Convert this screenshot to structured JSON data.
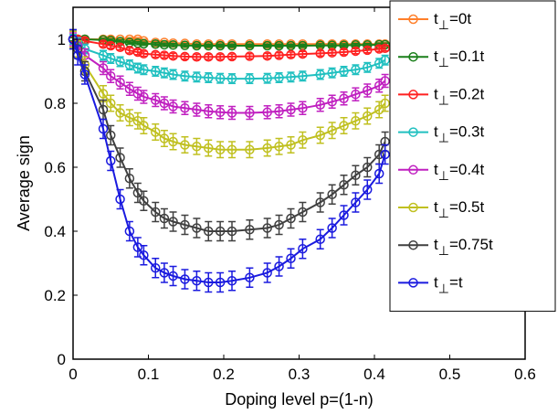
{
  "chart_data": {
    "type": "line",
    "title": "",
    "xlabel": "Doping level p=(1-n)",
    "ylabel": "Average sign",
    "xlim": [
      0,
      0.6
    ],
    "ylim": [
      0,
      1.1
    ],
    "xticks": [
      0,
      0.1,
      0.2,
      0.3,
      0.4,
      0.5,
      0.6
    ],
    "xtick_labels": [
      "0",
      "0.1",
      "0.2",
      "0.3",
      "0.4",
      "0.5",
      "0.6"
    ],
    "yticks": [
      0,
      0.2,
      0.4,
      0.6,
      0.8,
      1
    ],
    "ytick_labels": [
      "0",
      "0.2",
      "0.4",
      "0.6",
      "0.8",
      "1"
    ],
    "grid": false,
    "legend_position": "top-right",
    "x": [
      0,
      0.00625,
      0.01563,
      0.04,
      0.05,
      0.0625,
      0.075,
      0.0859,
      0.0938,
      0.1094,
      0.1211,
      0.1328,
      0.1484,
      0.1641,
      0.1797,
      0.1953,
      0.2109,
      0.2344,
      0.2578,
      0.2734,
      0.2891,
      0.3047,
      0.3281,
      0.3438,
      0.3594,
      0.375,
      0.3906,
      0.4063,
      0.4141
    ],
    "series": [
      {
        "name": "=0t",
        "color": "#ff7f2a",
        "values": [
          1.0,
          1.0,
          1.0,
          1.0,
          1.0,
          1.0,
          1.0,
          1.0,
          0.995,
          0.99,
          0.99,
          0.988,
          0.987,
          0.985,
          0.985,
          0.985,
          0.985,
          0.985,
          0.985,
          0.985,
          0.985,
          0.985,
          0.985,
          0.985,
          0.985,
          0.985,
          0.985,
          0.985,
          0.985
        ],
        "errors": [
          0.005,
          0.005,
          0.005,
          0.005,
          0.005,
          0.005,
          0.005,
          0.005,
          0.005,
          0.005,
          0.005,
          0.005,
          0.005,
          0.005,
          0.005,
          0.005,
          0.005,
          0.005,
          0.005,
          0.005,
          0.005,
          0.005,
          0.005,
          0.005,
          0.005,
          0.005,
          0.005,
          0.005,
          0.005
        ]
      },
      {
        "name": "=0.1t",
        "color": "#1a7f1a",
        "values": [
          1.0,
          1.0,
          1.0,
          0.998,
          0.996,
          0.993,
          0.99,
          0.988,
          0.986,
          0.985,
          0.983,
          0.982,
          0.981,
          0.98,
          0.98,
          0.98,
          0.98,
          0.98,
          0.98,
          0.98,
          0.98,
          0.98,
          0.981,
          0.981,
          0.981,
          0.982,
          0.982,
          0.983,
          0.983
        ],
        "errors": [
          0.005,
          0.005,
          0.005,
          0.005,
          0.005,
          0.005,
          0.005,
          0.005,
          0.005,
          0.005,
          0.005,
          0.005,
          0.005,
          0.005,
          0.005,
          0.005,
          0.005,
          0.005,
          0.005,
          0.005,
          0.005,
          0.005,
          0.005,
          0.005,
          0.005,
          0.005,
          0.005,
          0.005,
          0.005
        ]
      },
      {
        "name": "=0.2t",
        "color": "#ff2020",
        "values": [
          1.0,
          1.0,
          0.995,
          0.985,
          0.98,
          0.975,
          0.965,
          0.96,
          0.955,
          0.952,
          0.95,
          0.948,
          0.946,
          0.945,
          0.945,
          0.945,
          0.946,
          0.947,
          0.948,
          0.95,
          0.952,
          0.954,
          0.956,
          0.958,
          0.96,
          0.963,
          0.966,
          0.97,
          0.972
        ],
        "errors": [
          0.008,
          0.008,
          0.008,
          0.008,
          0.008,
          0.008,
          0.008,
          0.008,
          0.008,
          0.008,
          0.008,
          0.008,
          0.008,
          0.008,
          0.008,
          0.008,
          0.008,
          0.008,
          0.008,
          0.008,
          0.008,
          0.008,
          0.008,
          0.008,
          0.008,
          0.008,
          0.008,
          0.008,
          0.008
        ]
      },
      {
        "name": "=0.3t",
        "color": "#20c0c0",
        "values": [
          1.0,
          0.99,
          0.97,
          0.95,
          0.94,
          0.93,
          0.92,
          0.91,
          0.905,
          0.9,
          0.895,
          0.89,
          0.885,
          0.882,
          0.88,
          0.878,
          0.877,
          0.877,
          0.878,
          0.88,
          0.882,
          0.885,
          0.89,
          0.895,
          0.9,
          0.905,
          0.912,
          0.925,
          0.935
        ],
        "errors": [
          0.015,
          0.015,
          0.015,
          0.015,
          0.015,
          0.015,
          0.015,
          0.015,
          0.015,
          0.015,
          0.015,
          0.015,
          0.015,
          0.015,
          0.015,
          0.015,
          0.015,
          0.015,
          0.015,
          0.015,
          0.015,
          0.015,
          0.015,
          0.015,
          0.015,
          0.015,
          0.015,
          0.015,
          0.015
        ]
      },
      {
        "name": "=0.4t",
        "color": "#c020c0",
        "values": [
          1.0,
          0.98,
          0.95,
          0.91,
          0.885,
          0.865,
          0.845,
          0.83,
          0.82,
          0.81,
          0.8,
          0.79,
          0.785,
          0.78,
          0.775,
          0.772,
          0.77,
          0.77,
          0.772,
          0.775,
          0.78,
          0.785,
          0.795,
          0.805,
          0.815,
          0.828,
          0.84,
          0.855,
          0.87
        ],
        "errors": [
          0.02,
          0.02,
          0.02,
          0.02,
          0.02,
          0.02,
          0.02,
          0.02,
          0.02,
          0.02,
          0.02,
          0.02,
          0.02,
          0.02,
          0.02,
          0.02,
          0.02,
          0.02,
          0.02,
          0.02,
          0.02,
          0.02,
          0.02,
          0.02,
          0.02,
          0.02,
          0.02,
          0.02,
          0.02
        ]
      },
      {
        "name": "=0.5t",
        "color": "#c0c020",
        "values": [
          1.0,
          0.97,
          0.92,
          0.83,
          0.8,
          0.77,
          0.755,
          0.745,
          0.73,
          0.71,
          0.69,
          0.68,
          0.67,
          0.665,
          0.66,
          0.655,
          0.655,
          0.655,
          0.66,
          0.665,
          0.67,
          0.685,
          0.7,
          0.715,
          0.73,
          0.745,
          0.76,
          0.78,
          0.8
        ],
        "errors": [
          0.025,
          0.025,
          0.025,
          0.025,
          0.025,
          0.025,
          0.025,
          0.025,
          0.025,
          0.025,
          0.025,
          0.025,
          0.025,
          0.025,
          0.025,
          0.025,
          0.025,
          0.025,
          0.025,
          0.025,
          0.025,
          0.025,
          0.025,
          0.025,
          0.025,
          0.025,
          0.025,
          0.025,
          0.025
        ]
      },
      {
        "name": "=0.75t",
        "color": "#404040",
        "values": [
          1.0,
          0.97,
          0.9,
          0.78,
          0.7,
          0.63,
          0.565,
          0.52,
          0.495,
          0.46,
          0.44,
          0.43,
          0.42,
          0.41,
          0.4,
          0.4,
          0.4,
          0.405,
          0.41,
          0.42,
          0.44,
          0.46,
          0.49,
          0.515,
          0.545,
          0.575,
          0.6,
          0.64,
          0.68
        ],
        "errors": [
          0.03,
          0.03,
          0.03,
          0.03,
          0.03,
          0.03,
          0.03,
          0.03,
          0.03,
          0.03,
          0.03,
          0.03,
          0.03,
          0.03,
          0.03,
          0.03,
          0.03,
          0.03,
          0.03,
          0.03,
          0.03,
          0.03,
          0.03,
          0.03,
          0.03,
          0.03,
          0.03,
          0.03,
          0.03
        ]
      },
      {
        "name": "=t",
        "color": "#1a1adf",
        "values": [
          1.0,
          0.95,
          0.89,
          0.72,
          0.62,
          0.5,
          0.4,
          0.35,
          0.325,
          0.285,
          0.27,
          0.26,
          0.25,
          0.245,
          0.24,
          0.24,
          0.245,
          0.255,
          0.27,
          0.29,
          0.315,
          0.345,
          0.375,
          0.41,
          0.45,
          0.49,
          0.53,
          0.58,
          0.64
        ],
        "errors": [
          0.03,
          0.03,
          0.03,
          0.03,
          0.03,
          0.03,
          0.03,
          0.03,
          0.03,
          0.03,
          0.03,
          0.03,
          0.03,
          0.03,
          0.03,
          0.03,
          0.03,
          0.03,
          0.03,
          0.03,
          0.03,
          0.03,
          0.03,
          0.03,
          0.03,
          0.03,
          0.03,
          0.03,
          0.03
        ]
      }
    ],
    "legend_label_prefix": "t",
    "legend_label_subscript": "⊥"
  }
}
